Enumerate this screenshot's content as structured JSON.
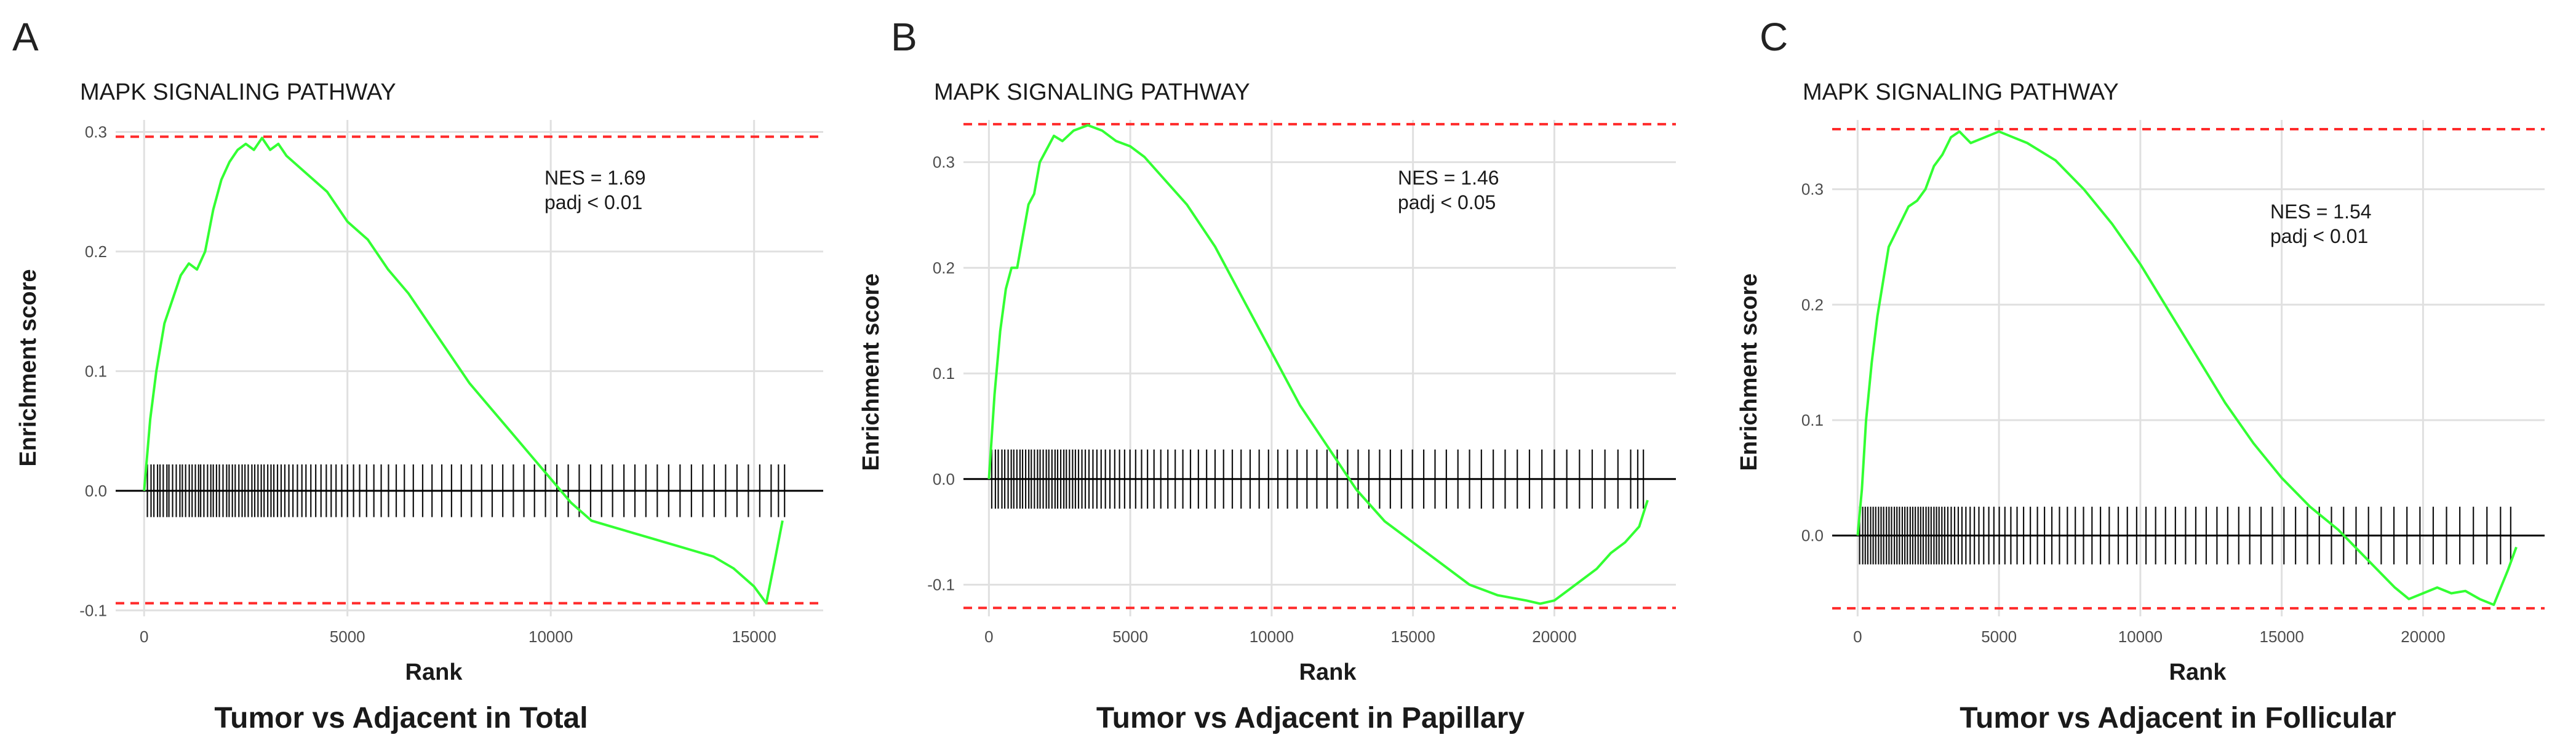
{
  "chart_data": [
    {
      "type": "line",
      "panel_label": "A",
      "title": "MAPK SIGNALING PATHWAY",
      "xlabel": "Rank",
      "ylabel": "Enrichment score",
      "caption": "Tumor vs Adjacent in Total",
      "annotation": [
        "NES = 1.69",
        "padj < 0.01"
      ],
      "xlim": [
        -700,
        16700
      ],
      "ylim": [
        -0.105,
        0.31
      ],
      "x_ticks": [
        0,
        5000,
        10000,
        15000
      ],
      "x_tick_labels": [
        "0",
        "5000",
        "10000",
        "15000"
      ],
      "y_ticks": [
        -0.1,
        0.0,
        0.1,
        0.2,
        0.3
      ],
      "y_tick_labels": [
        "-0.1",
        "0.0",
        "0.1",
        "0.2",
        "0.3"
      ],
      "threshold_lines": [
        0.296,
        -0.094
      ],
      "grid": true,
      "series": [
        {
          "x": [
            0,
            150,
            300,
            500,
            700,
            900,
            1100,
            1300,
            1500,
            1700,
            1900,
            2100,
            2300,
            2500,
            2700,
            2900,
            3100,
            3300,
            3500,
            4000,
            4500,
            5000,
            5500,
            6000,
            6500,
            7000,
            7500,
            8000,
            8500,
            9000,
            9500,
            10000,
            10500,
            11000,
            11500,
            12000,
            12500,
            13000,
            13500,
            14000,
            14500,
            15000,
            15300,
            15500,
            15700
          ],
          "y": [
            0.0,
            0.06,
            0.1,
            0.14,
            0.16,
            0.18,
            0.19,
            0.185,
            0.2,
            0.235,
            0.26,
            0.275,
            0.285,
            0.29,
            0.285,
            0.295,
            0.285,
            0.29,
            0.28,
            0.265,
            0.25,
            0.225,
            0.21,
            0.185,
            0.165,
            0.14,
            0.115,
            0.09,
            0.07,
            0.05,
            0.03,
            0.01,
            -0.01,
            -0.025,
            -0.03,
            -0.035,
            -0.04,
            -0.045,
            -0.05,
            -0.055,
            -0.065,
            -0.08,
            -0.094,
            -0.06,
            -0.025
          ]
        }
      ],
      "hits_band": [
        -0.022,
        0.022
      ],
      "hit_ranks": [
        80,
        170,
        240,
        330,
        390,
        470,
        560,
        610,
        700,
        790,
        880,
        940,
        1020,
        1110,
        1180,
        1260,
        1340,
        1390,
        1470,
        1560,
        1640,
        1700,
        1780,
        1850,
        1940,
        2030,
        2090,
        2170,
        2240,
        2330,
        2410,
        2480,
        2560,
        2650,
        2720,
        2800,
        2880,
        2950,
        3040,
        3120,
        3190,
        3280,
        3370,
        3460,
        3560,
        3660,
        3770,
        3880,
        3980,
        4100,
        4220,
        4350,
        4480,
        4600,
        4720,
        4860,
        5000,
        5150,
        5300,
        5470,
        5650,
        5830,
        6010,
        6200,
        6400,
        6620,
        6850,
        7080,
        7320,
        7560,
        7800,
        8050,
        8300,
        8560,
        8820,
        9080,
        9340,
        9600,
        9870,
        10150,
        10430,
        10700,
        10980,
        11250,
        11520,
        11800,
        12070,
        12340,
        12620,
        12900,
        13180,
        13460,
        13740,
        14020,
        14300,
        14580,
        14860,
        15140,
        15420,
        15600,
        15750
      ]
    },
    {
      "type": "line",
      "panel_label": "B",
      "title": "MAPK SIGNALING PATHWAY",
      "xlabel": "Rank",
      "ylabel": "Enrichment score",
      "caption": "Tumor vs Adjacent in Papillary",
      "annotation": [
        "NES = 1.46",
        "padj < 0.05"
      ],
      "xlim": [
        -900,
        24300
      ],
      "ylim": [
        -0.13,
        0.34
      ],
      "x_ticks": [
        0,
        5000,
        10000,
        15000,
        20000
      ],
      "x_tick_labels": [
        "0",
        "5000",
        "10000",
        "15000",
        "20000"
      ],
      "y_ticks": [
        -0.1,
        0.0,
        0.1,
        0.2,
        0.3
      ],
      "y_tick_labels": [
        "-0.1",
        "0.0",
        "0.1",
        "0.2",
        "0.3"
      ],
      "threshold_lines": [
        0.336,
        -0.122
      ],
      "grid": true,
      "series": [
        {
          "x": [
            0,
            200,
            400,
            600,
            800,
            1000,
            1200,
            1400,
            1600,
            1800,
            2000,
            2300,
            2600,
            3000,
            3500,
            4000,
            4500,
            5000,
            5500,
            6000,
            7000,
            8000,
            9000,
            10000,
            11000,
            12000,
            13000,
            14000,
            15000,
            16000,
            17000,
            18000,
            19000,
            19500,
            20000,
            20500,
            21000,
            21500,
            22000,
            22500,
            23000,
            23300
          ],
          "y": [
            0.0,
            0.08,
            0.14,
            0.18,
            0.2,
            0.2,
            0.23,
            0.26,
            0.27,
            0.3,
            0.31,
            0.325,
            0.32,
            0.33,
            0.335,
            0.33,
            0.32,
            0.315,
            0.305,
            0.29,
            0.26,
            0.22,
            0.17,
            0.12,
            0.07,
            0.03,
            -0.01,
            -0.04,
            -0.06,
            -0.08,
            -0.1,
            -0.11,
            -0.115,
            -0.118,
            -0.115,
            -0.105,
            -0.095,
            -0.085,
            -0.07,
            -0.06,
            -0.045,
            -0.02
          ]
        }
      ],
      "hits_band": [
        -0.028,
        0.028
      ],
      "hit_ranks": [
        100,
        230,
        330,
        460,
        560,
        680,
        790,
        880,
        990,
        1100,
        1190,
        1300,
        1410,
        1500,
        1610,
        1720,
        1810,
        1920,
        2030,
        2120,
        2230,
        2340,
        2430,
        2540,
        2650,
        2740,
        2850,
        2960,
        3060,
        3170,
        3290,
        3410,
        3540,
        3680,
        3820,
        3970,
        4120,
        4280,
        4450,
        4620,
        4800,
        4990,
        5190,
        5400,
        5610,
        5840,
        6080,
        6330,
        6590,
        6860,
        7130,
        7410,
        7700,
        8000,
        8300,
        8610,
        8920,
        9240,
        9560,
        9890,
        10220,
        10560,
        10900,
        11250,
        11600,
        11960,
        12320,
        12690,
        13060,
        13440,
        13820,
        14200,
        14590,
        14980,
        15380,
        15780,
        16180,
        16590,
        17000,
        17420,
        17840,
        18260,
        18690,
        19120,
        19560,
        20000,
        20440,
        20890,
        21340,
        21790,
        22250,
        22700,
        22950,
        23150
      ]
    },
    {
      "type": "line",
      "panel_label": "C",
      "title": "MAPK SIGNALING PATHWAY",
      "xlabel": "Rank",
      "ylabel": "Enrichment score",
      "caption": "Tumor vs Adjacent in Follicular",
      "annotation": [
        "NES = 1.54",
        "padj < 0.01"
      ],
      "xlim": [
        -900,
        24300
      ],
      "ylim": [
        -0.07,
        0.36
      ],
      "x_ticks": [
        0,
        5000,
        10000,
        15000,
        20000
      ],
      "x_tick_labels": [
        "0",
        "5000",
        "10000",
        "15000",
        "20000"
      ],
      "y_ticks": [
        0.0,
        0.1,
        0.2,
        0.3
      ],
      "y_tick_labels": [
        "0.0",
        "0.1",
        "0.2",
        "0.3"
      ],
      "threshold_lines": [
        0.352,
        -0.063
      ],
      "grid": true,
      "series": [
        {
          "x": [
            0,
            150,
            300,
            500,
            700,
            900,
            1100,
            1300,
            1500,
            1800,
            2100,
            2400,
            2700,
            3000,
            3300,
            3600,
            4000,
            4500,
            5000,
            5500,
            6000,
            7000,
            8000,
            9000,
            10000,
            11000,
            12000,
            13000,
            14000,
            15000,
            16000,
            17000,
            18000,
            19000,
            19500,
            20000,
            20500,
            21000,
            21500,
            22000,
            22500,
            23000,
            23300
          ],
          "y": [
            0.0,
            0.04,
            0.1,
            0.15,
            0.19,
            0.22,
            0.25,
            0.26,
            0.27,
            0.285,
            0.29,
            0.3,
            0.32,
            0.33,
            0.345,
            0.35,
            0.34,
            0.345,
            0.35,
            0.345,
            0.34,
            0.325,
            0.3,
            0.27,
            0.235,
            0.195,
            0.155,
            0.115,
            0.08,
            0.05,
            0.025,
            0.005,
            -0.02,
            -0.045,
            -0.055,
            -0.05,
            -0.045,
            -0.05,
            -0.048,
            -0.055,
            -0.06,
            -0.03,
            -0.01
          ]
        }
      ],
      "hits_band": [
        -0.025,
        0.025
      ],
      "hit_ranks": [
        70,
        180,
        270,
        360,
        460,
        550,
        640,
        740,
        830,
        920,
        1020,
        1110,
        1200,
        1300,
        1390,
        1480,
        1580,
        1670,
        1760,
        1860,
        1950,
        2040,
        2140,
        2230,
        2320,
        2420,
        2510,
        2600,
        2700,
        2790,
        2880,
        2980,
        3080,
        3190,
        3310,
        3430,
        3560,
        3690,
        3830,
        3980,
        4130,
        4290,
        4460,
        4640,
        4820,
        5010,
        5210,
        5420,
        5640,
        5870,
        6110,
        6360,
        6610,
        6870,
        7140,
        7420,
        7700,
        7990,
        8290,
        8590,
        8900,
        9220,
        9540,
        9870,
        10200,
        10540,
        10890,
        11240,
        11600,
        11960,
        12330,
        12710,
        13090,
        13480,
        13870,
        14270,
        14670,
        15080,
        15490,
        15910,
        16330,
        16760,
        17190,
        17630,
        18070,
        18520,
        18970,
        19430,
        19890,
        20360,
        20830,
        21300,
        21780,
        22260,
        22740,
        23100
      ]
    }
  ]
}
